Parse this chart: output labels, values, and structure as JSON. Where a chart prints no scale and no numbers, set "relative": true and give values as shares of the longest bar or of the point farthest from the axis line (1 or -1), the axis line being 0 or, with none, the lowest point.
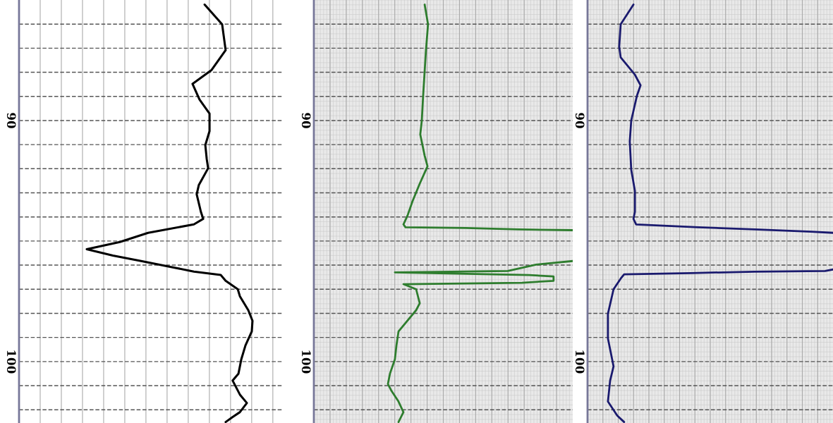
{
  "chart_data": [
    {
      "type": "line",
      "orientation": "horizontal",
      "relative": true,
      "grid": true,
      "tick_labels": "y",
      "ylim": [
        102.55,
        85.0
      ],
      "yticks": [
        {
          "value": 86,
          "label": null
        },
        {
          "value": 87,
          "label": null
        },
        {
          "value": 88,
          "label": null
        },
        {
          "value": 89,
          "label": null
        },
        90,
        {
          "value": 91,
          "label": null
        },
        {
          "value": 92,
          "label": null
        },
        {
          "value": 93,
          "label": null
        },
        {
          "value": 94,
          "label": null
        },
        {
          "value": 95,
          "label": null
        },
        {
          "value": 96,
          "label": null
        },
        {
          "value": 97,
          "label": null
        },
        {
          "value": 98,
          "label": null
        },
        {
          "value": 99,
          "label": null
        },
        100,
        {
          "value": 101,
          "label": null
        },
        {
          "value": 102,
          "label": null
        }
      ],
      "series": [
        {
          "color": "#000000",
          "x": [
            85.19,
            86.01,
            87.08,
            87.9,
            88.48,
            89.13,
            89.71,
            90.44,
            91.02,
            91.6,
            91.98,
            92.68,
            93.06,
            93.79,
            94.08,
            94.31,
            94.66,
            95.04,
            95.34,
            95.6,
            95.83,
            96.12,
            96.27,
            96.41,
            96.65,
            97.0,
            97.29,
            97.87,
            98.31,
            98.75,
            99.33,
            99.91,
            100.5,
            100.79,
            101.37,
            101.72,
            102.1,
            102.3,
            102.51
          ],
          "values": [
            0.795,
            0.87,
            0.885,
            0.825,
            0.743,
            0.773,
            0.816,
            0.816,
            0.798,
            0.804,
            0.81,
            0.77,
            0.761,
            0.779,
            0.789,
            0.749,
            0.553,
            0.432,
            0.29,
            0.402,
            0.523,
            0.674,
            0.749,
            0.864,
            0.885,
            0.937,
            0.946,
            0.982,
            1.0,
            0.997,
            0.97,
            0.952,
            0.94,
            0.915,
            0.946,
            0.976,
            0.946,
            0.915,
            0.885
          ]
        }
      ]
    },
    {
      "type": "line",
      "orientation": "horizontal",
      "relative": true,
      "grid": true,
      "tick_labels": "y",
      "ylim": [
        102.55,
        85.0
      ],
      "yticks": [
        {
          "value": 86,
          "label": null
        },
        {
          "value": 87,
          "label": null
        },
        {
          "value": 88,
          "label": null
        },
        {
          "value": 89,
          "label": null
        },
        90,
        {
          "value": 91,
          "label": null
        },
        {
          "value": 92,
          "label": null
        },
        {
          "value": 93,
          "label": null
        },
        {
          "value": 94,
          "label": null
        },
        {
          "value": 95,
          "label": null
        },
        {
          "value": 96,
          "label": null
        },
        {
          "value": 97,
          "label": null
        },
        {
          "value": 98,
          "label": null
        },
        {
          "value": 99,
          "label": null
        },
        100,
        {
          "value": 101,
          "label": null
        },
        {
          "value": 102,
          "label": null
        }
      ],
      "series": [
        {
          "color": "#2e7d2e",
          "x": [
            85.19,
            86.01,
            87.08,
            87.96,
            88.98,
            90.0,
            90.58,
            91.46,
            91.9,
            92.62,
            93.35,
            93.94,
            94.31,
            94.43,
            94.46,
            94.52,
            94.55,
            95.2,
            95.83,
            95.98,
            96.24,
            96.3,
            96.41,
            96.47,
            96.65,
            96.73,
            96.79,
            97.0,
            97.58,
            97.87,
            98.75,
            99.33,
            99.91,
            100.5,
            100.93,
            101.22,
            101.66,
            102.1,
            102.51
          ],
          "values": [
            0.428,
            0.441,
            0.433,
            0.428,
            0.422,
            0.417,
            0.411,
            0.428,
            0.439,
            0.409,
            0.381,
            0.362,
            0.346,
            0.354,
            0.586,
            0.79,
            1.0,
            null,
            1.0,
            0.858,
            0.749,
            0.313,
            0.831,
            0.926,
            0.926,
            0.804,
            0.346,
            0.395,
            0.409,
            0.395,
            0.327,
            0.319,
            0.313,
            0.294,
            0.286,
            0.3,
            0.327,
            0.346,
            0.327
          ]
        }
      ]
    },
    {
      "type": "line",
      "orientation": "horizontal",
      "relative": true,
      "grid": true,
      "tick_labels": "y",
      "ylim": [
        102.55,
        85.0
      ],
      "yticks": [
        {
          "value": 86,
          "label": null
        },
        {
          "value": 87,
          "label": null
        },
        {
          "value": 88,
          "label": null
        },
        {
          "value": 89,
          "label": null
        },
        90,
        {
          "value": 91,
          "label": null
        },
        {
          "value": 92,
          "label": null
        },
        {
          "value": 93,
          "label": null
        },
        {
          "value": 94,
          "label": null
        },
        {
          "value": 95,
          "label": null
        },
        {
          "value": 96,
          "label": null
        },
        {
          "value": 97,
          "label": null
        },
        {
          "value": 98,
          "label": null
        },
        {
          "value": 99,
          "label": null
        },
        100,
        {
          "value": 101,
          "label": null
        },
        {
          "value": 102,
          "label": null
        }
      ],
      "series": [
        {
          "color": "#1a1a6e",
          "x": [
            85.19,
            86.01,
            86.94,
            87.38,
            88.1,
            88.54,
            88.98,
            90.0,
            90.87,
            92.04,
            92.92,
            93.79,
            94.08,
            94.31,
            94.43,
            94.52,
            94.61,
            94.66,
            95.4,
            96.18,
            96.24,
            96.27,
            96.33,
            96.38,
            96.56,
            97.0,
            98.02,
            99.04,
            100.2,
            100.79,
            101.66,
            102.24,
            102.51
          ],
          "values": [
            0.187,
            0.135,
            0.129,
            0.135,
            0.193,
            0.216,
            0.201,
            0.178,
            0.172,
            0.178,
            0.193,
            0.193,
            0.187,
            0.198,
            0.451,
            0.681,
            0.911,
            1.0,
            null,
            1.0,
            0.968,
            0.681,
            0.422,
            0.149,
            0.135,
            0.106,
            0.083,
            0.083,
            0.106,
            0.092,
            0.083,
            0.121,
            0.149
          ]
        }
      ]
    }
  ]
}
